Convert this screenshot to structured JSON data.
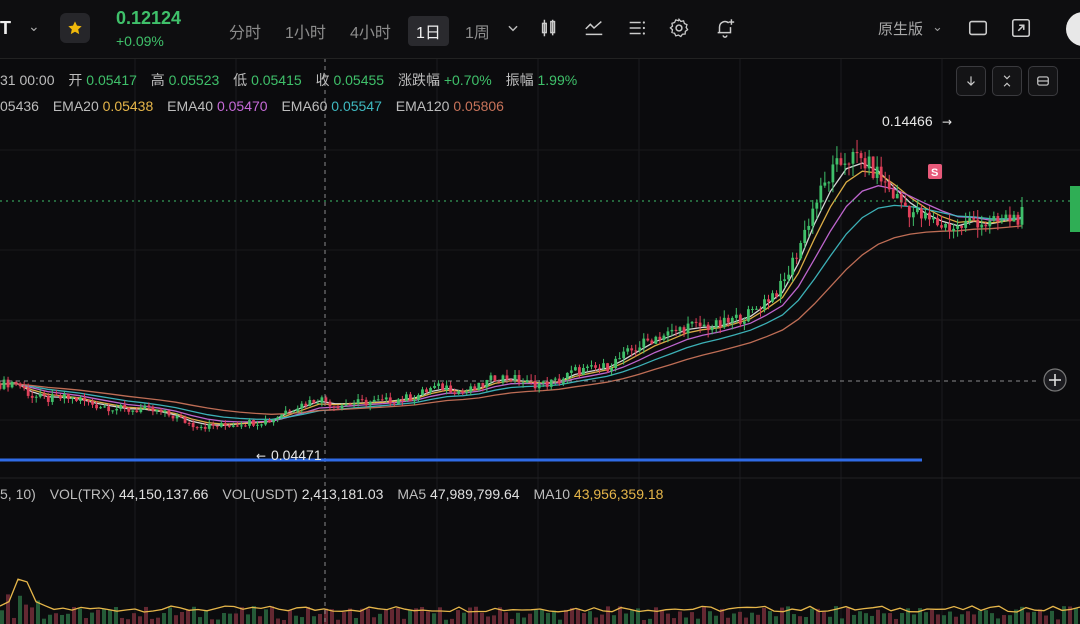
{
  "header": {
    "pair_fragment": "T",
    "price": "0.12124",
    "change": "+0.09%",
    "timeframes": [
      "分时",
      "1小时",
      "4小时",
      "1日",
      "1周"
    ],
    "active_timeframe": "1日",
    "mode_label": "原生版"
  },
  "ohlc": {
    "date_fragment": "31 00:00",
    "open_label": "开",
    "open": "0.05417",
    "high_label": "高",
    "high": "0.05523",
    "low_label": "低",
    "low": "0.05415",
    "close_label": "收",
    "close": "0.05455",
    "change_label": "涨跌幅",
    "change": "+0.70%",
    "amp_label": "振幅",
    "amp": "1.99%"
  },
  "ema_legend": {
    "first_fragment": "05436",
    "items": [
      {
        "label": "EMA20",
        "value": "0.05438",
        "color": "#e6b64a"
      },
      {
        "label": "EMA40",
        "value": "0.05470",
        "color": "#c76ad8"
      },
      {
        "label": "EMA60",
        "value": "0.05547",
        "color": "#3fb9c0"
      },
      {
        "label": "EMA120",
        "value": "0.05806",
        "color": "#c8735a"
      }
    ]
  },
  "volume_legend": {
    "prefix": "5, 10)",
    "vol_trx_label": "VOL(TRX)",
    "vol_trx": "44,150,137.66",
    "vol_usdt_label": "VOL(USDT)",
    "vol_usdt": "2,413,181.03",
    "ma5_label": "MA5",
    "ma5": "47,989,799.64",
    "ma10_label": "MA10",
    "ma10": "43,956,359.18"
  },
  "chart_data": {
    "type": "line",
    "title": "",
    "xlabel": "",
    "ylabel": "",
    "ylim": [
      0.035,
      0.155
    ],
    "x": [
      0,
      4,
      8,
      12,
      16,
      20,
      24,
      28,
      32,
      36,
      40,
      44,
      48,
      52,
      56,
      60,
      64,
      68,
      72,
      76,
      80,
      84,
      88,
      92,
      96,
      100,
      104,
      108,
      112,
      116,
      120,
      124,
      128,
      132,
      136,
      140,
      144,
      148,
      152,
      156,
      160,
      164,
      168,
      172,
      176,
      180,
      184,
      188,
      192,
      196,
      200,
      204,
      208,
      212,
      216,
      220,
      224,
      228,
      232,
      236,
      240,
      244,
      248,
      252,
      256
    ],
    "series": [
      {
        "name": "close",
        "values": [
          0.0641,
          0.0648,
          0.06,
          0.059,
          0.0595,
          0.0588,
          0.057,
          0.0562,
          0.0553,
          0.0556,
          0.0545,
          0.053,
          0.0505,
          0.0498,
          0.05,
          0.0509,
          0.0513,
          0.0519,
          0.0555,
          0.0574,
          0.0593,
          0.057,
          0.0576,
          0.058,
          0.0582,
          0.059,
          0.0598,
          0.0627,
          0.0632,
          0.0612,
          0.063,
          0.0664,
          0.0662,
          0.0645,
          0.064,
          0.0652,
          0.0686,
          0.069,
          0.07,
          0.0735,
          0.077,
          0.08,
          0.0813,
          0.0837,
          0.0837,
          0.0838,
          0.086,
          0.088,
          0.093,
          0.0973,
          0.11,
          0.125,
          0.135,
          0.141,
          0.14,
          0.135,
          0.128,
          0.123,
          0.12,
          0.118,
          0.117,
          0.12,
          0.118,
          0.12,
          0.1212
        ]
      }
    ],
    "annotations": [
      {
        "text": "0.14466",
        "value": 0.14466
      },
      {
        "text": "0.04471",
        "value": 0.04471
      },
      {
        "text": "S"
      }
    ]
  }
}
